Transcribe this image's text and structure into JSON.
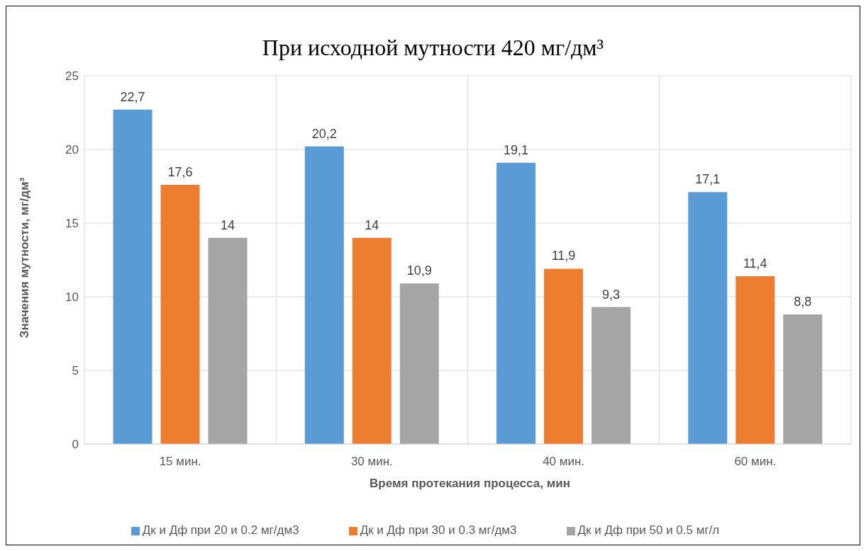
{
  "chart_data": {
    "type": "bar",
    "title": "При исходной мутности 420 мг/дм³",
    "xlabel": "Время протекания процесса, мин",
    "ylabel": "Значения мутности, мг/дм³",
    "categories": [
      "15 мин.",
      "30 мин.",
      "40 мин.",
      "60 мин."
    ],
    "series": [
      {
        "name": "Дк и Дф при 20 и 0.2 мг/дм3",
        "color": "#5b9bd5",
        "values": [
          22.7,
          20.2,
          19.1,
          17.1
        ],
        "value_labels": [
          "22,7",
          "20,2",
          "19,1",
          "17,1"
        ]
      },
      {
        "name": "Дк и Дф при 30 и 0.3 мг/дм3",
        "color": "#ed7d31",
        "values": [
          17.6,
          14,
          11.9,
          11.4
        ],
        "value_labels": [
          "17,6",
          "14",
          "11,9",
          "11,4"
        ]
      },
      {
        "name": "Дк и Дф при 50 и 0.5 мг/л",
        "color": "#a5a5a5",
        "values": [
          14,
          10.9,
          9.3,
          8.8
        ],
        "value_labels": [
          "14",
          "10,9",
          "9,3",
          "8,8"
        ]
      }
    ],
    "ylim": [
      0,
      25
    ],
    "yticks": [
      0,
      5,
      10,
      15,
      20,
      25
    ],
    "grid": true,
    "legend": "bottom"
  }
}
